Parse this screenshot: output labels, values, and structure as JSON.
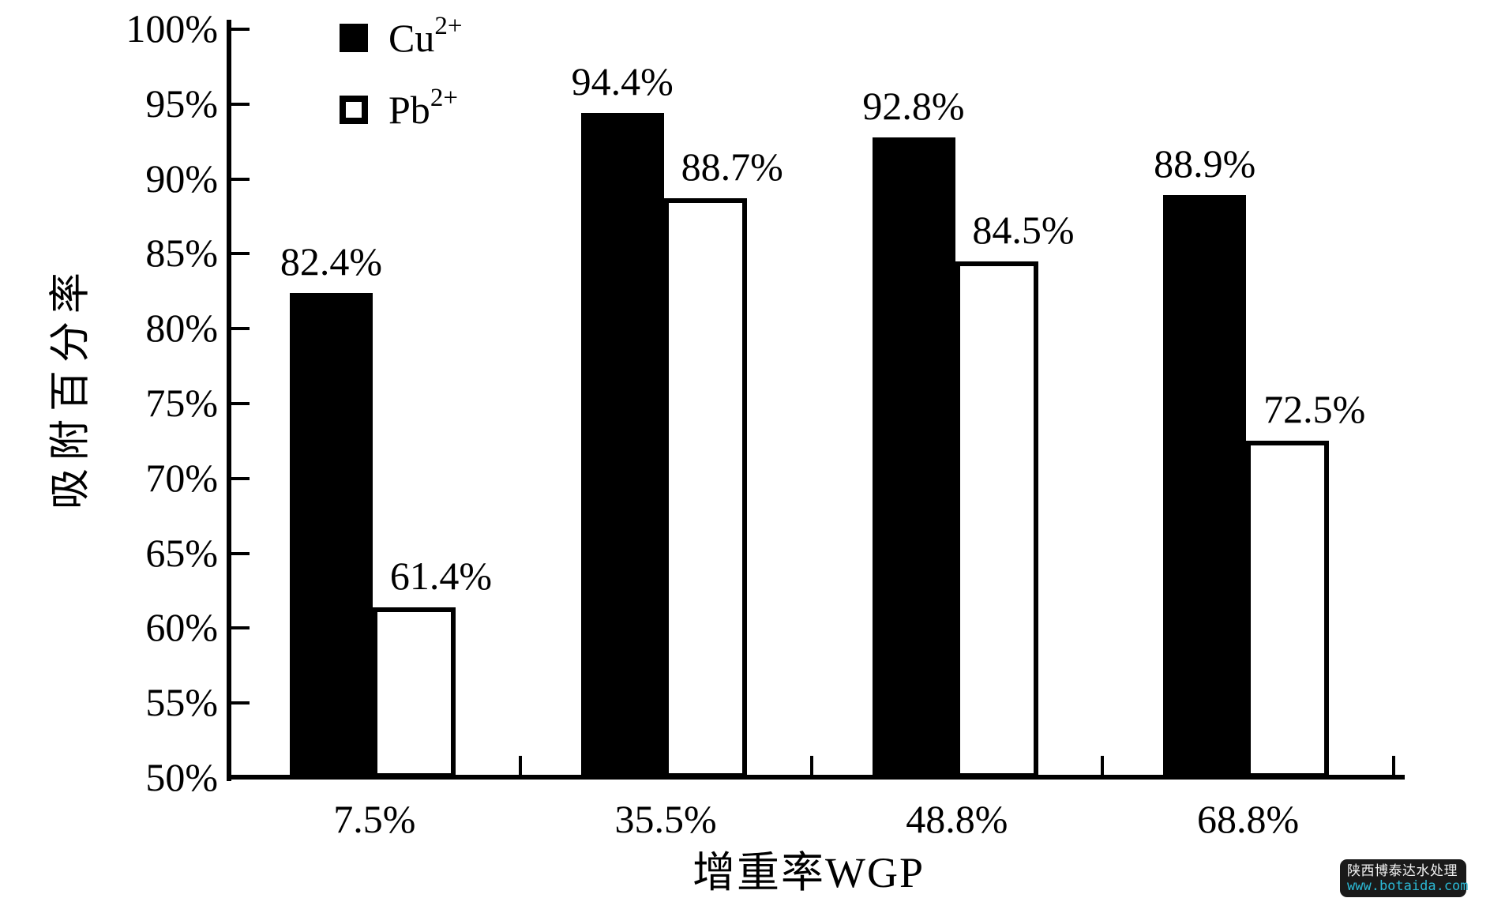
{
  "chart_data": {
    "type": "bar",
    "title": "",
    "categories": [
      "7.5%",
      "35.5%",
      "48.8%",
      "68.8%"
    ],
    "series": [
      {
        "name": "Cu",
        "sup": "2+",
        "values": [
          82.4,
          94.4,
          92.8,
          88.9
        ],
        "style": "filled",
        "color": "#000000"
      },
      {
        "name": "Pb",
        "sup": "2+",
        "values": [
          61.4,
          88.7,
          84.5,
          72.5
        ],
        "style": "open",
        "color": "#ffffff"
      }
    ],
    "value_labels": [
      [
        "82.4%",
        "94.4%",
        "92.8%",
        "88.9%"
      ],
      [
        "61.4%",
        "88.7%",
        "84.5%",
        "72.5%"
      ]
    ],
    "xlabel": "增重率WGP",
    "ylabel": "吸附百分率",
    "ylim": [
      50,
      100
    ],
    "ytick_step": 5,
    "ytick_suffix": "%",
    "yticklabels": [
      "50%",
      "55%",
      "60%",
      "65%",
      "70%",
      "75%",
      "80%",
      "85%",
      "90%",
      "95%",
      "100%"
    ],
    "grid": false,
    "legend_position": "top-left-inside",
    "axis_color": "#000000",
    "background": "#ffffff"
  },
  "watermark": {
    "line1": "陕西博泰达水处理",
    "line2": "www.botaida.com",
    "url_color": "#2bb8d4"
  }
}
